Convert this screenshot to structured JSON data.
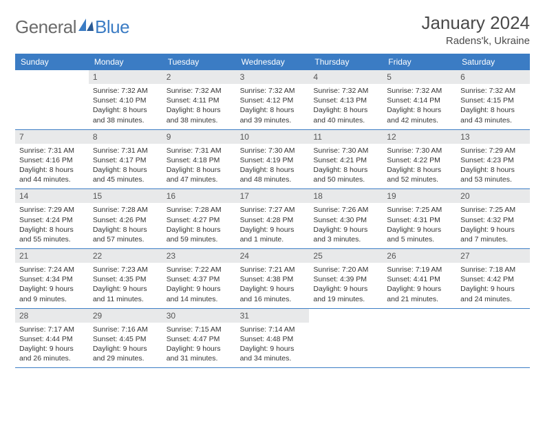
{
  "logo": {
    "general": "General",
    "blue": "Blue"
  },
  "title": "January 2024",
  "location": "Radens'k, Ukraine",
  "colors": {
    "header_bg": "#3b7cc4",
    "header_fg": "#ffffff",
    "daynum_bg": "#e8e9ea",
    "row_border": "#3b7cc4",
    "logo_gray": "#6b6b6b",
    "logo_blue": "#3b7cc4"
  },
  "weekdays": [
    "Sunday",
    "Monday",
    "Tuesday",
    "Wednesday",
    "Thursday",
    "Friday",
    "Saturday"
  ],
  "weeks": [
    [
      null,
      {
        "n": "1",
        "sr": "Sunrise: 7:32 AM",
        "ss": "Sunset: 4:10 PM",
        "dl": "Daylight: 8 hours and 38 minutes."
      },
      {
        "n": "2",
        "sr": "Sunrise: 7:32 AM",
        "ss": "Sunset: 4:11 PM",
        "dl": "Daylight: 8 hours and 38 minutes."
      },
      {
        "n": "3",
        "sr": "Sunrise: 7:32 AM",
        "ss": "Sunset: 4:12 PM",
        "dl": "Daylight: 8 hours and 39 minutes."
      },
      {
        "n": "4",
        "sr": "Sunrise: 7:32 AM",
        "ss": "Sunset: 4:13 PM",
        "dl": "Daylight: 8 hours and 40 minutes."
      },
      {
        "n": "5",
        "sr": "Sunrise: 7:32 AM",
        "ss": "Sunset: 4:14 PM",
        "dl": "Daylight: 8 hours and 42 minutes."
      },
      {
        "n": "6",
        "sr": "Sunrise: 7:32 AM",
        "ss": "Sunset: 4:15 PM",
        "dl": "Daylight: 8 hours and 43 minutes."
      }
    ],
    [
      {
        "n": "7",
        "sr": "Sunrise: 7:31 AM",
        "ss": "Sunset: 4:16 PM",
        "dl": "Daylight: 8 hours and 44 minutes."
      },
      {
        "n": "8",
        "sr": "Sunrise: 7:31 AM",
        "ss": "Sunset: 4:17 PM",
        "dl": "Daylight: 8 hours and 45 minutes."
      },
      {
        "n": "9",
        "sr": "Sunrise: 7:31 AM",
        "ss": "Sunset: 4:18 PM",
        "dl": "Daylight: 8 hours and 47 minutes."
      },
      {
        "n": "10",
        "sr": "Sunrise: 7:30 AM",
        "ss": "Sunset: 4:19 PM",
        "dl": "Daylight: 8 hours and 48 minutes."
      },
      {
        "n": "11",
        "sr": "Sunrise: 7:30 AM",
        "ss": "Sunset: 4:21 PM",
        "dl": "Daylight: 8 hours and 50 minutes."
      },
      {
        "n": "12",
        "sr": "Sunrise: 7:30 AM",
        "ss": "Sunset: 4:22 PM",
        "dl": "Daylight: 8 hours and 52 minutes."
      },
      {
        "n": "13",
        "sr": "Sunrise: 7:29 AM",
        "ss": "Sunset: 4:23 PM",
        "dl": "Daylight: 8 hours and 53 minutes."
      }
    ],
    [
      {
        "n": "14",
        "sr": "Sunrise: 7:29 AM",
        "ss": "Sunset: 4:24 PM",
        "dl": "Daylight: 8 hours and 55 minutes."
      },
      {
        "n": "15",
        "sr": "Sunrise: 7:28 AM",
        "ss": "Sunset: 4:26 PM",
        "dl": "Daylight: 8 hours and 57 minutes."
      },
      {
        "n": "16",
        "sr": "Sunrise: 7:28 AM",
        "ss": "Sunset: 4:27 PM",
        "dl": "Daylight: 8 hours and 59 minutes."
      },
      {
        "n": "17",
        "sr": "Sunrise: 7:27 AM",
        "ss": "Sunset: 4:28 PM",
        "dl": "Daylight: 9 hours and 1 minute."
      },
      {
        "n": "18",
        "sr": "Sunrise: 7:26 AM",
        "ss": "Sunset: 4:30 PM",
        "dl": "Daylight: 9 hours and 3 minutes."
      },
      {
        "n": "19",
        "sr": "Sunrise: 7:25 AM",
        "ss": "Sunset: 4:31 PM",
        "dl": "Daylight: 9 hours and 5 minutes."
      },
      {
        "n": "20",
        "sr": "Sunrise: 7:25 AM",
        "ss": "Sunset: 4:32 PM",
        "dl": "Daylight: 9 hours and 7 minutes."
      }
    ],
    [
      {
        "n": "21",
        "sr": "Sunrise: 7:24 AM",
        "ss": "Sunset: 4:34 PM",
        "dl": "Daylight: 9 hours and 9 minutes."
      },
      {
        "n": "22",
        "sr": "Sunrise: 7:23 AM",
        "ss": "Sunset: 4:35 PM",
        "dl": "Daylight: 9 hours and 11 minutes."
      },
      {
        "n": "23",
        "sr": "Sunrise: 7:22 AM",
        "ss": "Sunset: 4:37 PM",
        "dl": "Daylight: 9 hours and 14 minutes."
      },
      {
        "n": "24",
        "sr": "Sunrise: 7:21 AM",
        "ss": "Sunset: 4:38 PM",
        "dl": "Daylight: 9 hours and 16 minutes."
      },
      {
        "n": "25",
        "sr": "Sunrise: 7:20 AM",
        "ss": "Sunset: 4:39 PM",
        "dl": "Daylight: 9 hours and 19 minutes."
      },
      {
        "n": "26",
        "sr": "Sunrise: 7:19 AM",
        "ss": "Sunset: 4:41 PM",
        "dl": "Daylight: 9 hours and 21 minutes."
      },
      {
        "n": "27",
        "sr": "Sunrise: 7:18 AM",
        "ss": "Sunset: 4:42 PM",
        "dl": "Daylight: 9 hours and 24 minutes."
      }
    ],
    [
      {
        "n": "28",
        "sr": "Sunrise: 7:17 AM",
        "ss": "Sunset: 4:44 PM",
        "dl": "Daylight: 9 hours and 26 minutes."
      },
      {
        "n": "29",
        "sr": "Sunrise: 7:16 AM",
        "ss": "Sunset: 4:45 PM",
        "dl": "Daylight: 9 hours and 29 minutes."
      },
      {
        "n": "30",
        "sr": "Sunrise: 7:15 AM",
        "ss": "Sunset: 4:47 PM",
        "dl": "Daylight: 9 hours and 31 minutes."
      },
      {
        "n": "31",
        "sr": "Sunrise: 7:14 AM",
        "ss": "Sunset: 4:48 PM",
        "dl": "Daylight: 9 hours and 34 minutes."
      },
      null,
      null,
      null
    ]
  ]
}
